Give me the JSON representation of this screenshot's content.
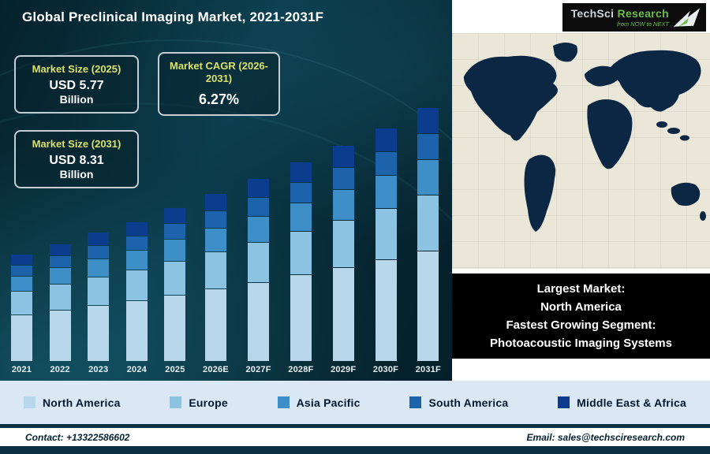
{
  "header": {
    "title": "Global Preclinical Imaging Market, 2021-2031F"
  },
  "logo": {
    "brand_primary": "TechSci",
    "brand_secondary": "Research",
    "tagline": "from NOW to NEXT"
  },
  "stats": [
    {
      "label": "Market Size (2025)",
      "value": "USD 5.77",
      "unit": "Billion"
    },
    {
      "label": "Market CAGR (2026-2031)",
      "value": "6.27%"
    },
    {
      "label": "Market Size (2031)",
      "value": "USD 8.31",
      "unit": "Billion"
    }
  ],
  "chart_data": {
    "type": "bar",
    "stacked": true,
    "title": "Global Preclinical Imaging Market, 2021-2031F",
    "xlabel": "",
    "ylabel": "",
    "unit": "USD Billion",
    "grid": false,
    "legend_position": "bottom",
    "categories": [
      "2021",
      "2022",
      "2023",
      "2024",
      "2025",
      "2026E",
      "2027F",
      "2028F",
      "2029F",
      "2030F",
      "2031F"
    ],
    "totals": [
      4.62,
      4.9,
      5.17,
      5.45,
      5.77,
      6.13,
      6.52,
      6.93,
      7.36,
      7.82,
      8.31
    ],
    "known_points": {
      "2025": 5.77,
      "2031F": 8.31,
      "cagr_2026_2031": "6.27%"
    },
    "series": [
      {
        "name": "North America",
        "color": "#b9d7ea",
        "values": [
          2.03,
          2.16,
          2.27,
          2.4,
          2.54,
          2.7,
          2.87,
          3.05,
          3.24,
          3.44,
          3.66
        ]
      },
      {
        "name": "Europe",
        "color": "#8cc2e2",
        "values": [
          1.02,
          1.08,
          1.14,
          1.2,
          1.27,
          1.35,
          1.43,
          1.52,
          1.62,
          1.72,
          1.83
        ]
      },
      {
        "name": "Asia Pacific",
        "color": "#3e8ec7",
        "values": [
          0.65,
          0.69,
          0.72,
          0.76,
          0.81,
          0.86,
          0.91,
          0.97,
          1.03,
          1.09,
          1.16
        ]
      },
      {
        "name": "South America",
        "color": "#1d63ab",
        "values": [
          0.46,
          0.49,
          0.52,
          0.55,
          0.58,
          0.61,
          0.65,
          0.69,
          0.74,
          0.78,
          0.83
        ]
      },
      {
        "name": "Middle East & Africa",
        "color": "#0b3c8e",
        "values": [
          0.46,
          0.48,
          0.52,
          0.54,
          0.57,
          0.61,
          0.66,
          0.7,
          0.73,
          0.79,
          0.83
        ]
      }
    ]
  },
  "highlight_box": {
    "lines": [
      "Largest Market:",
      "North America",
      "Fastest Growing Segment:",
      "Photoacoustic Imaging Systems"
    ]
  },
  "footer": {
    "contact": "Contact: +13322586602",
    "email": "Email: sales@techsciresearch.com"
  },
  "colors": {
    "panel_bg_dark": "#07303e",
    "stat_label": "#dbe26a",
    "legend_bg": "#d9e8f4",
    "footer_bar": "#0b3044",
    "map_sea": "#eae6d8",
    "map_land": "#0c2743",
    "highlight_bg": "#000000",
    "logo_green": "#6abf4b"
  }
}
